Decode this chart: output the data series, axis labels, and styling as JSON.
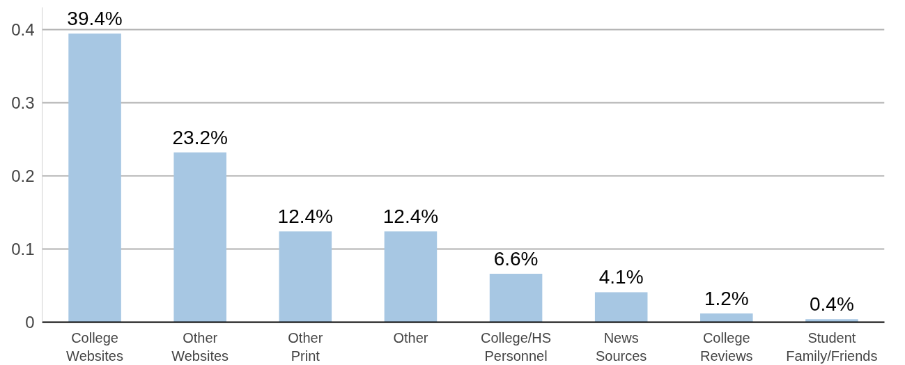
{
  "chart_data": {
    "type": "bar",
    "categories": [
      "College\nWebsites",
      "Other\nWebsites",
      "Other\nPrint",
      "Other",
      "College/HS\nPersonnel",
      "News\nSources",
      "College\nReviews",
      "Student\nFamily/Friends"
    ],
    "values": [
      0.394,
      0.232,
      0.124,
      0.124,
      0.066,
      0.041,
      0.012,
      0.004
    ],
    "value_labels": [
      "39.4%",
      "23.2%",
      "12.4%",
      "12.4%",
      "6.6%",
      "4.1%",
      "1.2%",
      "0.4%"
    ],
    "color": "#a7c7e3",
    "ylim": [
      0,
      0.43
    ],
    "yticks": [
      0,
      0.1,
      0.2,
      0.3,
      0.4
    ],
    "grid": "y"
  }
}
